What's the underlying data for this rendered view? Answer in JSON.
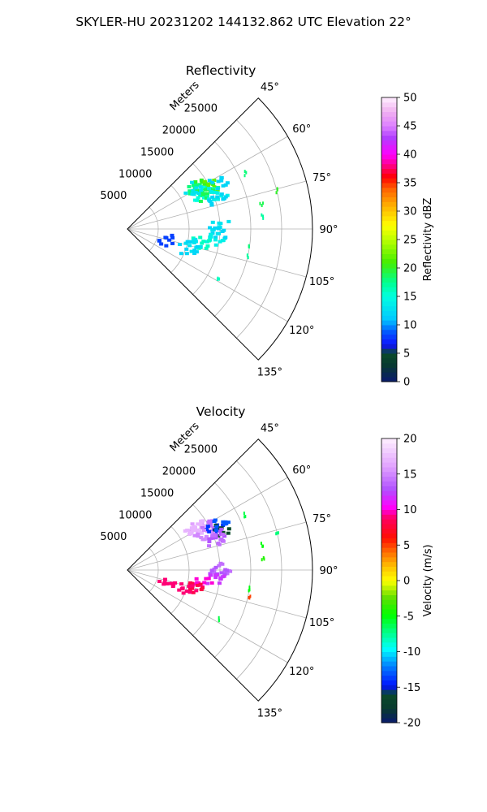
{
  "figure": {
    "suptitle": "SKYLER-HU  20231202  144132.862 UTC Elevation 22°"
  },
  "chart_data": [
    {
      "type": "polar-sector",
      "title": "Reflectivity",
      "range_label": "Meters",
      "angular_range": [
        45,
        135
      ],
      "angle_ticks": [
        "45°",
        "60°",
        "75°",
        "90°",
        "105°",
        "120°",
        "135°"
      ],
      "radial_ticks": [
        "5000",
        "10000",
        "15000",
        "20000",
        "25000"
      ],
      "radial_max": 30000,
      "grid": true,
      "colorbar": {
        "label": "Reflectivity dBZ",
        "min": 0,
        "max": 50,
        "ticks": [
          "0",
          "5",
          "10",
          "15",
          "20",
          "25",
          "30",
          "35",
          "40",
          "45",
          "50"
        ]
      },
      "echoes": [
        {
          "angle": 58,
          "range": 13000,
          "value": 18
        },
        {
          "angle": 59,
          "range": 14000,
          "value": 20
        },
        {
          "angle": 61,
          "range": 15000,
          "value": 22
        },
        {
          "angle": 63,
          "range": 14500,
          "value": 17
        },
        {
          "angle": 64,
          "range": 13500,
          "value": 15
        },
        {
          "angle": 66,
          "range": 14000,
          "value": 19
        },
        {
          "angle": 68,
          "range": 15500,
          "value": 14
        },
        {
          "angle": 57,
          "range": 12500,
          "value": 13
        },
        {
          "angle": 62,
          "range": 16500,
          "value": 12
        },
        {
          "angle": 70,
          "range": 15000,
          "value": 12
        },
        {
          "angle": 88,
          "range": 15000,
          "value": 13
        },
        {
          "angle": 91,
          "range": 14500,
          "value": 12
        },
        {
          "angle": 96,
          "range": 14000,
          "value": 14
        },
        {
          "angle": 100,
          "range": 12000,
          "value": 16
        },
        {
          "angle": 103,
          "range": 11000,
          "value": 13
        },
        {
          "angle": 106,
          "range": 10000,
          "value": 12
        },
        {
          "angle": 64,
          "range": 21000,
          "value": 18
        },
        {
          "angle": 75,
          "range": 25000,
          "value": 20
        },
        {
          "angle": 79,
          "range": 22000,
          "value": 19
        },
        {
          "angle": 84,
          "range": 22000,
          "value": 17
        },
        {
          "angle": 98,
          "range": 20000,
          "value": 18
        },
        {
          "angle": 102,
          "range": 20000,
          "value": 17
        },
        {
          "angle": 118,
          "range": 16500,
          "value": 16
        },
        {
          "angle": 106,
          "range": 6500,
          "value": 8
        }
      ]
    },
    {
      "type": "polar-sector",
      "title": "Velocity",
      "range_label": "Meters",
      "angular_range": [
        45,
        135
      ],
      "angle_ticks": [
        "45°",
        "60°",
        "75°",
        "90°",
        "105°",
        "120°",
        "135°"
      ],
      "radial_ticks": [
        "5000",
        "10000",
        "15000",
        "20000",
        "25000"
      ],
      "radial_max": 30000,
      "grid": true,
      "colorbar": {
        "label": "Velocity (m/s)",
        "min": -20,
        "max": 20,
        "ticks": [
          "-20",
          "-15",
          "-10",
          "-5",
          "0",
          "5",
          "10",
          "15",
          "20"
        ]
      },
      "echoes": [
        {
          "angle": 58,
          "range": 13000,
          "value": 16
        },
        {
          "angle": 59,
          "range": 14000,
          "value": 17
        },
        {
          "angle": 61,
          "range": 15000,
          "value": 14
        },
        {
          "angle": 63,
          "range": 15500,
          "value": -14
        },
        {
          "angle": 64,
          "range": 13500,
          "value": 15
        },
        {
          "angle": 66,
          "range": 16500,
          "value": -16
        },
        {
          "angle": 68,
          "range": 15500,
          "value": 13
        },
        {
          "angle": 57,
          "range": 12500,
          "value": 17
        },
        {
          "angle": 62,
          "range": 16500,
          "value": -13
        },
        {
          "angle": 70,
          "range": 15000,
          "value": 14
        },
        {
          "angle": 88,
          "range": 15000,
          "value": 14
        },
        {
          "angle": 91,
          "range": 14500,
          "value": 13
        },
        {
          "angle": 96,
          "range": 14000,
          "value": 12
        },
        {
          "angle": 100,
          "range": 12000,
          "value": 10
        },
        {
          "angle": 103,
          "range": 11000,
          "value": 8
        },
        {
          "angle": 106,
          "range": 10000,
          "value": 9
        },
        {
          "angle": 64,
          "range": 21000,
          "value": -6
        },
        {
          "angle": 75,
          "range": 25000,
          "value": -7
        },
        {
          "angle": 79,
          "range": 22000,
          "value": -5
        },
        {
          "angle": 84,
          "range": 22000,
          "value": -4
        },
        {
          "angle": 98,
          "range": 20000,
          "value": -5
        },
        {
          "angle": 102,
          "range": 20000,
          "value": 5
        },
        {
          "angle": 118,
          "range": 16500,
          "value": -6
        },
        {
          "angle": 106,
          "range": 6500,
          "value": 9
        }
      ]
    }
  ]
}
